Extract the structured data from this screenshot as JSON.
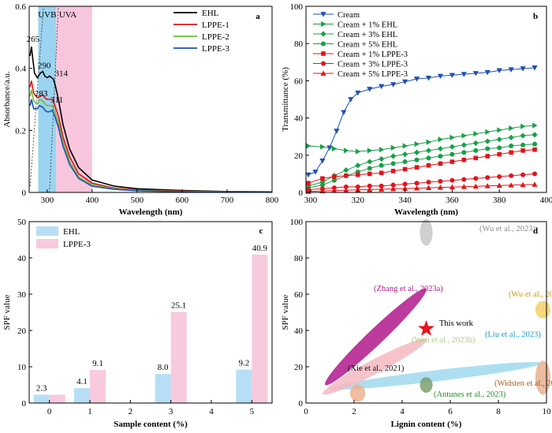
{
  "colors": {
    "uvb": "#9bd4f0",
    "uva": "#f7c6dd",
    "ehl": "#000000",
    "lppe1": "#e0141b",
    "lppe2": "#6cbf3a",
    "lppe3": "#1f4fb3",
    "cream": "#1f4fb3",
    "ehl_green": "#17a048",
    "lppe_red": "#e0141b",
    "bar_ehl": "#b6dff5",
    "bar_lppe": "#f7cadd",
    "star": "#e8141c"
  },
  "chart_data": [
    {
      "panel": "a",
      "type": "line",
      "xlabel": "Wavelength (nm)",
      "ylabel": "Absorbance/a.u.",
      "xlim": [
        260,
        800
      ],
      "ylim": [
        0,
        0.6
      ],
      "xticks": [
        300,
        400,
        500,
        600,
        700,
        800
      ],
      "yticks": [
        0,
        0.2,
        0.4,
        0.6
      ],
      "regions": [
        {
          "label": "UVB",
          "from": 280,
          "to": 320
        },
        {
          "label": "UVA",
          "from": 320,
          "to": 400
        }
      ],
      "annotations": [
        {
          "text": "265",
          "x": 265,
          "y": 0.47
        },
        {
          "text": "290",
          "x": 290,
          "y": 0.39
        },
        {
          "text": "314",
          "x": 314,
          "y": 0.365
        },
        {
          "text": "283",
          "x": 283,
          "y": 0.3
        },
        {
          "text": "311",
          "x": 311,
          "y": 0.28
        }
      ],
      "legend_position": "top-right",
      "series": [
        {
          "name": "EHL",
          "color_key": "ehl",
          "x": [
            262,
            265,
            268,
            272,
            278,
            285,
            290,
            295,
            300,
            305,
            310,
            314,
            318,
            325,
            335,
            350,
            370,
            400,
            450,
            500,
            600,
            700,
            800
          ],
          "y": [
            0.44,
            0.47,
            0.43,
            0.385,
            0.37,
            0.385,
            0.39,
            0.375,
            0.37,
            0.375,
            0.37,
            0.365,
            0.345,
            0.3,
            0.22,
            0.14,
            0.08,
            0.04,
            0.02,
            0.012,
            0.006,
            0.003,
            0.002
          ]
        },
        {
          "name": "LPPE-1",
          "color_key": "lppe1",
          "x": [
            262,
            265,
            270,
            278,
            285,
            290,
            295,
            300,
            305,
            311,
            316,
            325,
            335,
            350,
            370,
            400,
            450,
            500,
            600,
            700,
            800
          ],
          "y": [
            0.34,
            0.36,
            0.32,
            0.305,
            0.31,
            0.315,
            0.305,
            0.3,
            0.3,
            0.3,
            0.285,
            0.245,
            0.18,
            0.115,
            0.06,
            0.03,
            0.014,
            0.008,
            0.004,
            0.002,
            0.001
          ]
        },
        {
          "name": "LPPE-2",
          "color_key": "lppe2",
          "x": [
            262,
            265,
            270,
            278,
            283,
            290,
            295,
            300,
            305,
            311,
            316,
            325,
            335,
            350,
            370,
            400,
            450,
            500,
            600,
            700,
            800
          ],
          "y": [
            0.31,
            0.33,
            0.295,
            0.285,
            0.3,
            0.295,
            0.285,
            0.28,
            0.28,
            0.28,
            0.265,
            0.225,
            0.165,
            0.1,
            0.05,
            0.025,
            0.012,
            0.006,
            0.003,
            0.002,
            0.001
          ]
        },
        {
          "name": "LPPE-3",
          "color_key": "lppe3",
          "x": [
            262,
            265,
            270,
            278,
            283,
            290,
            295,
            300,
            305,
            311,
            316,
            325,
            335,
            350,
            370,
            400,
            450,
            500,
            600,
            700,
            800
          ],
          "y": [
            0.28,
            0.3,
            0.27,
            0.27,
            0.28,
            0.275,
            0.265,
            0.26,
            0.26,
            0.265,
            0.25,
            0.21,
            0.15,
            0.09,
            0.045,
            0.02,
            0.01,
            0.005,
            0.002,
            0.001,
            0.001
          ]
        }
      ]
    },
    {
      "panel": "b",
      "type": "line",
      "xlabel": "Wavelength (nm)",
      "ylabel": "Transmittance (%)",
      "xlim": [
        298,
        400
      ],
      "ylim": [
        0,
        100
      ],
      "xticks": [
        300,
        320,
        340,
        360,
        380,
        400
      ],
      "yticks": [
        0,
        20,
        40,
        60,
        80,
        100
      ],
      "legend_position": "top-left",
      "series": [
        {
          "name": "Cream",
          "color_key": "cream",
          "marker": "tri-down",
          "x": [
            299,
            302,
            305,
            308,
            311,
            314,
            317,
            320,
            325,
            330,
            335,
            340,
            345,
            350,
            355,
            360,
            365,
            370,
            375,
            380,
            385,
            390,
            395
          ],
          "y": [
            9.5,
            11,
            17,
            24,
            33,
            43,
            50,
            53.5,
            55.5,
            57,
            58,
            59.5,
            61,
            61.5,
            62.5,
            63,
            63.5,
            64,
            64.5,
            65.5,
            66,
            66.5,
            67
          ]
        },
        {
          "name": "Cream + 1% EHL",
          "color_key": "ehl_green",
          "marker": "tri-right",
          "x": [
            299,
            305,
            310,
            315,
            320,
            325,
            330,
            335,
            340,
            345,
            350,
            355,
            360,
            365,
            370,
            375,
            380,
            385,
            390,
            395
          ],
          "y": [
            25,
            24.5,
            23.5,
            22.5,
            22,
            22.5,
            23,
            24,
            25,
            26,
            27,
            28.5,
            29.5,
            30.5,
            31.5,
            32.5,
            33.5,
            34.5,
            35.5,
            36
          ]
        },
        {
          "name": "Cream + 3% EHL",
          "color_key": "ehl_green",
          "marker": "diamond",
          "x": [
            299,
            305,
            310,
            315,
            320,
            325,
            330,
            335,
            340,
            345,
            350,
            355,
            360,
            365,
            370,
            375,
            380,
            385,
            390,
            395
          ],
          "y": [
            3.5,
            5.5,
            9,
            12,
            14.5,
            16.5,
            18,
            19.5,
            20.5,
            21.5,
            22.5,
            23.5,
            24.5,
            25.5,
            26.5,
            27.5,
            28.5,
            29.5,
            30.5,
            31
          ]
        },
        {
          "name": "Cream + 5% EHL",
          "color_key": "ehl_green",
          "marker": "circle",
          "x": [
            299,
            305,
            310,
            315,
            320,
            325,
            330,
            335,
            340,
            345,
            350,
            355,
            360,
            365,
            370,
            375,
            380,
            385,
            390,
            395
          ],
          "y": [
            2.5,
            4,
            6.5,
            9,
            11,
            13,
            14.5,
            15.5,
            16.5,
            17.5,
            18.5,
            19.5,
            20.5,
            21.5,
            22.5,
            23.5,
            24,
            25,
            25.5,
            26
          ]
        },
        {
          "name": "Cream + 1% LPPE-3",
          "color_key": "lppe_red",
          "marker": "square",
          "x": [
            299,
            305,
            310,
            315,
            320,
            325,
            330,
            335,
            340,
            345,
            350,
            355,
            360,
            365,
            370,
            375,
            380,
            385,
            390,
            395
          ],
          "y": [
            5,
            7.5,
            8.5,
            9,
            9.5,
            10,
            10.5,
            11.5,
            12.5,
            13.5,
            14.5,
            15.5,
            16.5,
            17.5,
            18.5,
            19.5,
            20.5,
            21.5,
            22.5,
            23
          ]
        },
        {
          "name": "Cream + 3% LPPE-3",
          "color_key": "lppe_red",
          "marker": "circle",
          "x": [
            299,
            305,
            310,
            315,
            320,
            325,
            330,
            335,
            340,
            345,
            350,
            355,
            360,
            365,
            370,
            375,
            380,
            385,
            390,
            395
          ],
          "y": [
            1.5,
            2,
            2.5,
            3,
            3,
            3.5,
            3.5,
            4,
            4.5,
            5,
            5.5,
            6,
            6.5,
            7,
            7.5,
            8,
            8.5,
            9,
            9.5,
            10
          ]
        },
        {
          "name": "Cream + 5% LPPE-3",
          "color_key": "lppe_red",
          "marker": "tri-up",
          "x": [
            299,
            305,
            310,
            315,
            320,
            325,
            330,
            335,
            340,
            345,
            350,
            355,
            360,
            365,
            370,
            375,
            380,
            385,
            390,
            395
          ],
          "y": [
            0.5,
            0.8,
            1,
            1.2,
            1.4,
            1.5,
            1.7,
            1.9,
            2.1,
            2.3,
            2.5,
            2.7,
            2.9,
            3.1,
            3.3,
            3.5,
            3.7,
            3.9,
            4.1,
            4.3
          ]
        }
      ]
    },
    {
      "panel": "c",
      "type": "bar",
      "xlabel": "Sample content (%)",
      "ylabel": "SPF value",
      "ylim": [
        0,
        50
      ],
      "yticks": [
        0,
        10,
        20,
        30,
        40,
        50
      ],
      "xticks": [
        "0",
        "1",
        "2",
        "3",
        "4",
        "5"
      ],
      "categories": [
        "0",
        "1",
        "3",
        "5"
      ],
      "legend_position": "top-left",
      "series": [
        {
          "name": "EHL",
          "color_key": "bar_ehl",
          "values": [
            2.3,
            4.1,
            8.0,
            9.2
          ],
          "labels": [
            "2.3",
            "4.1",
            "8.0",
            "9.2"
          ]
        },
        {
          "name": "LPPE-3",
          "color_key": "bar_lppe",
          "values": [
            2.3,
            9.1,
            25.1,
            40.9
          ],
          "labels": [
            "",
            "9.1",
            "25.1",
            "40.9"
          ]
        }
      ]
    },
    {
      "panel": "d",
      "type": "scatter",
      "xlabel": "Lignin content (%)",
      "ylabel": "SPF value",
      "xlim": [
        0,
        10
      ],
      "ylim": [
        0,
        100
      ],
      "xticks": [
        0,
        2,
        4,
        6,
        8,
        10
      ],
      "yticks": [
        0,
        20,
        40,
        60,
        80,
        100
      ],
      "points": [
        {
          "label": "(Wu et al., 2023)",
          "x_from": 4.9,
          "x_to": 5.1,
          "y_from": 88,
          "y_to": 100,
          "color": "#c8c8c8",
          "label_color": "#8c8c8c"
        },
        {
          "label": "(Zhang et al., 2023a)",
          "x_from": 0.8,
          "x_to": 5.0,
          "y_from": 10,
          "y_to": 63,
          "color": "#b0198c",
          "label_color": "#b0198c"
        },
        {
          "label": "This work",
          "x": 5.0,
          "y": 40.9,
          "color": "#e8141c",
          "label_color": "#000000"
        },
        {
          "label": "(Wu et al., 2020)",
          "x_from": 9.7,
          "x_to": 10,
          "y_from": 48,
          "y_to": 55,
          "color": "#f4d069",
          "label_color": "#d09a10"
        },
        {
          "label": "(Liu et al., 2023)",
          "x_from": 1.0,
          "x_to": 9.8,
          "y_from": 8,
          "y_to": 22,
          "color": "#9fd9ef",
          "label_color": "#1f9fd0"
        },
        {
          "label": "(Wen et al., 2023b)",
          "x_from": 0.7,
          "x_to": 5.0,
          "y_from": 5,
          "y_to": 35,
          "color": "#f5b8bf",
          "label_color": "#a8d080"
        },
        {
          "label": "(Xie et al., 2021)",
          "x_from": 2.0,
          "x_to": 2.3,
          "y_from": 2,
          "y_to": 9,
          "color": "#f0b090",
          "label_color": "#111111"
        },
        {
          "label": "(Widsten et al., 2020)",
          "x_from": 9.7,
          "x_to": 10,
          "y_from": 6,
          "y_to": 22,
          "color": "#e8b090",
          "label_color": "#b05a1a"
        },
        {
          "label": "(Antunes et al., 2023)",
          "x_from": 4.9,
          "x_to": 5.1,
          "y_from": 7,
          "y_to": 13,
          "color": "#7aa070",
          "label_color": "#2a8a2a"
        }
      ]
    }
  ]
}
